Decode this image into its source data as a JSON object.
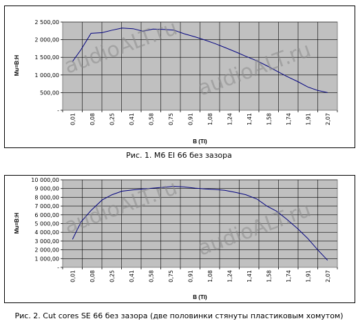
{
  "watermark": "audioALT.ru",
  "chart_data": [
    {
      "type": "line",
      "title": "",
      "xlabel": "B (Tl)",
      "ylabel": "Mu=B:H",
      "caption": "Рис. 1. M6 EI 66 без зазора",
      "categories": [
        "0,01",
        "0,08",
        "0,25",
        "0,41",
        "0,58",
        "0,75",
        "0,91",
        "1,08",
        "1,24",
        "1,41",
        "1,58",
        "1,74",
        "1,91",
        "2,07"
      ],
      "y_ticks": [
        "-",
        "500,00",
        "1 000,00",
        "1 500,00",
        "2 000,00",
        "2 500,00"
      ],
      "ylim": [
        0,
        2500
      ],
      "x_range": [
        0.01,
        2.07
      ],
      "grid": true,
      "plot_background": "#c0c0c0",
      "line_color": "#000080",
      "series": [
        {
          "x": [
            0.01,
            0.08,
            0.16,
            0.25,
            0.33,
            0.41,
            0.5,
            0.58,
            0.66,
            0.75,
            0.83,
            0.91,
            1.0,
            1.08,
            1.16,
            1.24,
            1.33,
            1.41,
            1.5,
            1.58,
            1.66,
            1.74,
            1.83,
            1.91,
            1.99,
            2.07
          ],
          "y": [
            1380,
            1720,
            2180,
            2200,
            2270,
            2330,
            2310,
            2240,
            2300,
            2290,
            2270,
            2170,
            2080,
            1990,
            1890,
            1780,
            1650,
            1530,
            1400,
            1260,
            1110,
            960,
            810,
            660,
            560,
            500
          ]
        }
      ]
    },
    {
      "type": "line",
      "title": "",
      "xlabel": "B (Tl)",
      "ylabel": "Mu=B:H",
      "caption": "Рис. 2. Cut cores SE 66 без зазора (две половинки стянуты пластиковым хомутом)",
      "categories": [
        "0,01",
        "0,08",
        "0,25",
        "0,41",
        "0,58",
        "0,75",
        "0,91",
        "1,08",
        "1,24",
        "1,41",
        "1,58",
        "1,74",
        "1,91",
        "2,07"
      ],
      "y_ticks": [
        "-",
        "1 000,00",
        "2 000,00",
        "3 000,00",
        "4 000,00",
        "5 000,00",
        "6 000,00",
        "7 000,00",
        "8 000,00",
        "9 000,00",
        "10 000,00"
      ],
      "ylim": [
        0,
        10000
      ],
      "x_range": [
        0.01,
        2.07
      ],
      "grid": true,
      "plot_background": "#c0c0c0",
      "line_color": "#000080",
      "series": [
        {
          "x": [
            0.01,
            0.08,
            0.16,
            0.25,
            0.33,
            0.41,
            0.5,
            0.58,
            0.66,
            0.75,
            0.83,
            0.91,
            1.0,
            1.08,
            1.16,
            1.24,
            1.33,
            1.41,
            1.5,
            1.58,
            1.66,
            1.74,
            1.83,
            1.91,
            1.99,
            2.07
          ],
          "y": [
            3200,
            5200,
            6500,
            7700,
            8300,
            8700,
            8850,
            8950,
            9050,
            9150,
            9250,
            9200,
            9050,
            8950,
            8900,
            8800,
            8550,
            8300,
            7800,
            7000,
            6400,
            5500,
            4400,
            3300,
            2000,
            800
          ]
        }
      ]
    }
  ]
}
